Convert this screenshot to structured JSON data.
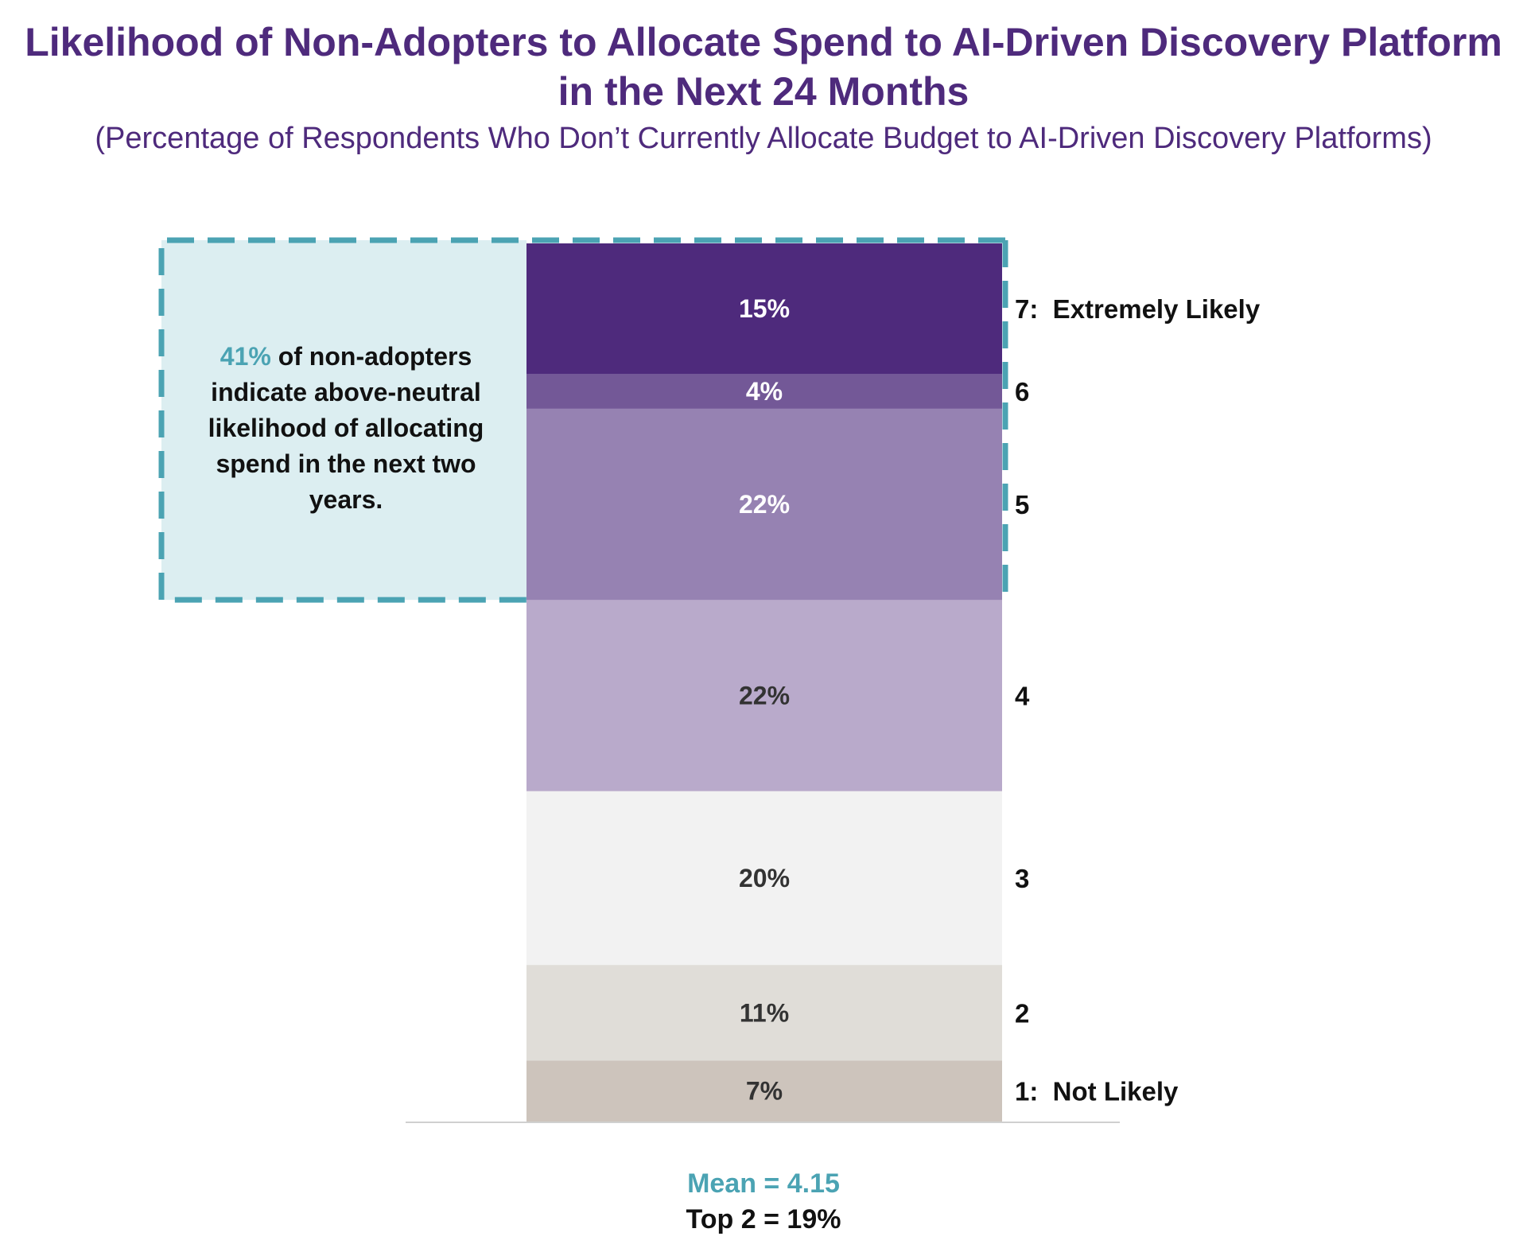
{
  "header": {
    "title_line1": "Likelihood of Non-Adopters to Allocate Spend to AI-Driven Discovery Platform",
    "title_line2": "in the Next 24 Months",
    "subtitle": "(Percentage of Respondents Who Don’t Currently Allocate Budget to AI-Driven Discovery Platforms)"
  },
  "callout": {
    "highlight": "41%",
    "text": " of non-adopters indicate above-neutral likelihood of allocating spend in the next two years.",
    "border_color": "#4ba3b3",
    "fill_color": "#dceef1"
  },
  "summary": {
    "mean": "Mean = 4.15",
    "top2": "Top 2 = 19%"
  },
  "chart_data": {
    "type": "bar",
    "orientation": "stacked-vertical",
    "categories": [
      "7:  Extremely Likely",
      "6",
      "5",
      "4",
      "3",
      "2",
      "1:  Not Likely"
    ],
    "values": [
      15,
      4,
      22,
      22,
      20,
      11,
      7
    ],
    "labels": [
      "15%",
      "4%",
      "22%",
      "22%",
      "20%",
      "11%",
      "7%"
    ],
    "colors": [
      "#4e2a7c",
      "#735897",
      "#9682b2",
      "#b9aacb",
      "#f2f2f2",
      "#e0ddd8",
      "#cdc4bc"
    ],
    "label_colors": [
      "#ffffff",
      "#ffffff",
      "#ffffff",
      "#333333",
      "#333333",
      "#333333",
      "#333333"
    ],
    "highlighted_categories": [
      "7:  Extremely Likely",
      "6",
      "5"
    ],
    "unit": "%"
  }
}
